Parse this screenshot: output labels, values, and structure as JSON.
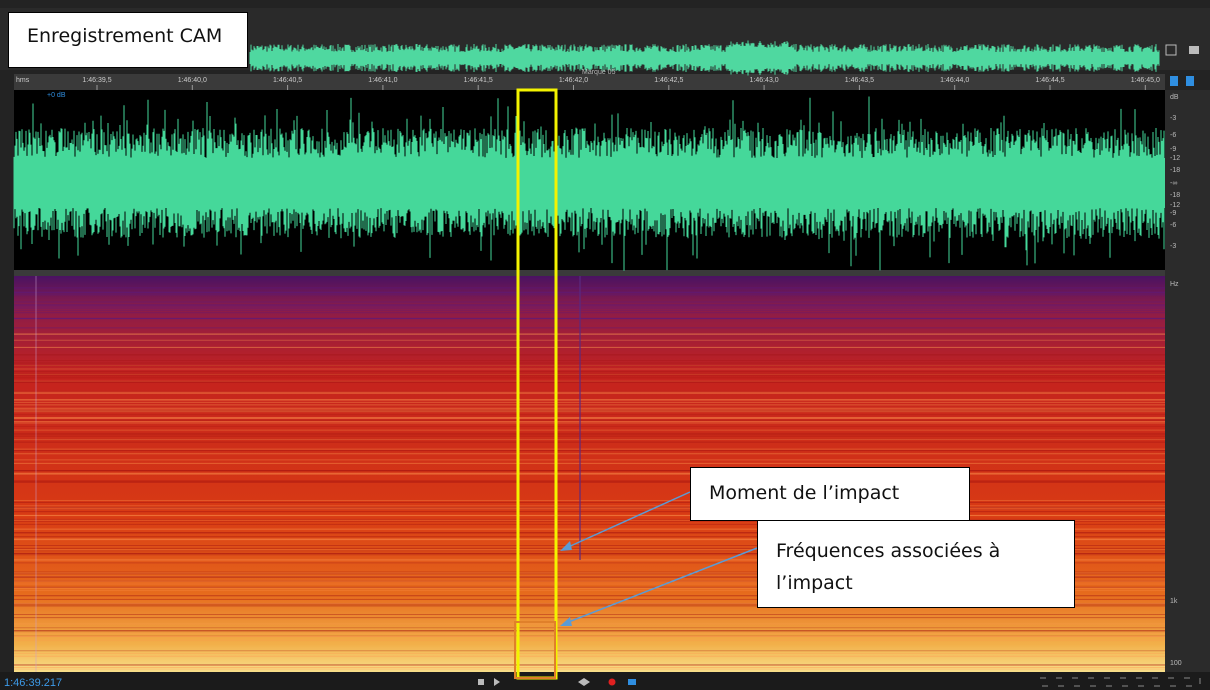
{
  "annotations": {
    "title": "Enregistrement CAM",
    "impact_moment": "Moment de l’impact",
    "impact_frequencies": "Fréquences associées à l’impact"
  },
  "ruler": {
    "unit": "hms",
    "marker": "Marque 05",
    "labels": [
      "1:46:39,5",
      "1:46:40,0",
      "1:46:40,5",
      "1:46:41,0",
      "1:46:41,5",
      "1:46:42,0",
      "1:46:42,5",
      "1:46:43,0",
      "1:46:43,5",
      "1:46:44,0",
      "1:46:44,5",
      "1:46:45,0"
    ]
  },
  "waveform": {
    "gain": "+0 dB",
    "scale": [
      "dB",
      "-3",
      "-6",
      "-9",
      "-12",
      "-18",
      "-∞",
      "-18",
      "-12",
      "-9",
      "-6",
      "-3"
    ]
  },
  "spectrogram": {
    "scale": [
      "Hz",
      "1k",
      "100"
    ]
  },
  "transport": {
    "current_time": "1:46:39.217"
  }
}
